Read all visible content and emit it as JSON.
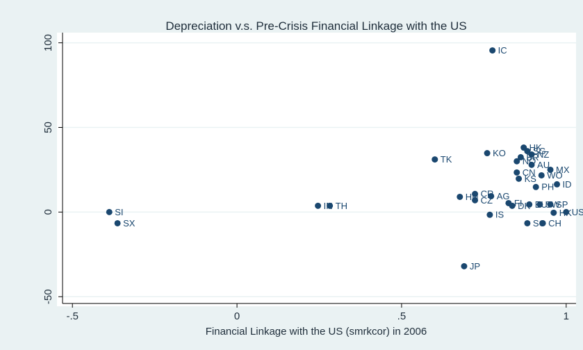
{
  "chart_data": {
    "type": "scatter",
    "title": "Depreciation v.s. Pre-Crisis Financial Linkage with the US",
    "x_label": "Financial Linkage with the US (smrkcor) in 2006",
    "color": "#1a476f",
    "x": [
      -0.388,
      -0.363,
      0.246,
      0.282,
      0.601,
      0.76,
      0.776,
      0.69,
      0.677,
      0.723,
      0.772,
      0.723,
      0.768,
      0.871,
      0.882,
      0.895,
      0.862,
      0.85,
      0.895,
      0.85,
      0.952,
      0.856,
      0.925,
      0.908,
      0.972,
      0.825,
      0.836,
      0.888,
      0.92,
      0.952,
      0.962,
      1.0,
      0.882,
      0.929
    ],
    "values": [
      0,
      -6.6,
      3.7,
      3.7,
      31.1,
      34.8,
      95.5,
      -32,
      9.0,
      10.7,
      9.4,
      7.0,
      -1.6,
      38.1,
      36,
      34,
      32.4,
      30,
      27.9,
      23.4,
      25,
      19.7,
      21.7,
      14.8,
      16.4,
      5.3,
      3.7,
      4.5,
      4.5,
      4.5,
      -0.4,
      0,
      -6.6,
      -6.6
    ],
    "labels": [
      "SI",
      "SX",
      "IN",
      "TH",
      "TK",
      "KO",
      "IC",
      "JP",
      "HN",
      "CR",
      "AG",
      "CZ",
      "IS",
      "HK",
      "SG",
      "NZ",
      "BR",
      "NO",
      "AU",
      "CN",
      "MX",
      "KS",
      "WO",
      "PH",
      "ID",
      "FI",
      "DK",
      "EU",
      "SW",
      "SP",
      "HK",
      "US",
      "SC",
      "CH"
    ],
    "xlim": [
      -0.53,
      1.03
    ],
    "ylim": [
      -54,
      106
    ],
    "xticks": [
      {
        "value": -0.5,
        "label": "-.5"
      },
      0,
      {
        "value": 0.5,
        "label": ".5"
      },
      1
    ],
    "yticks": [
      -50,
      0,
      50,
      100
    ],
    "grid": true
  }
}
